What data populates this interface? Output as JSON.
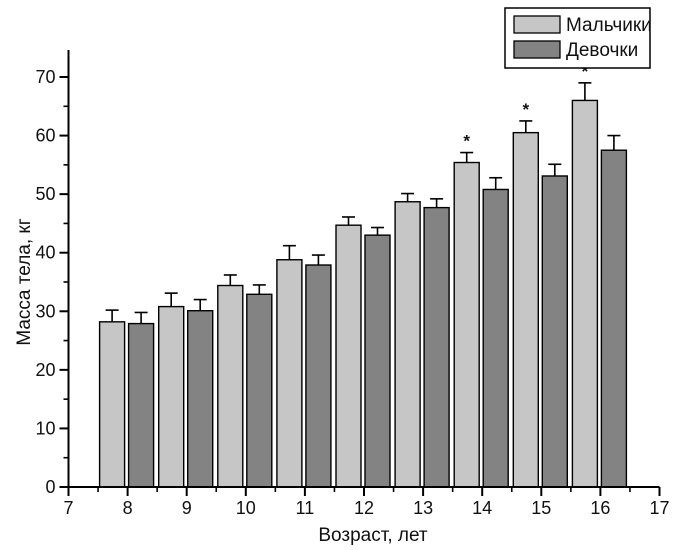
{
  "figure": {
    "background": "#ffffff",
    "axis_color": "#000000",
    "significance_marker": "*"
  },
  "legend": {
    "items": [
      {
        "key": "boys",
        "label": "Мальчики",
        "color": "#c6c6c6"
      },
      {
        "key": "girls",
        "label": "Девочки",
        "color": "#838383"
      }
    ]
  },
  "chart_data": {
    "type": "bar",
    "title": "",
    "xlabel": "Возраст, лет",
    "ylabel": "Масса тела, кг",
    "categories": [
      8,
      9,
      10,
      11,
      12,
      13,
      14,
      15,
      16
    ],
    "xlim": [
      7,
      17
    ],
    "ylim": [
      0,
      70
    ],
    "x_major_ticks": [
      7,
      8,
      9,
      10,
      11,
      12,
      13,
      14,
      15,
      16,
      17
    ],
    "x_minor_ticks": [
      7.5,
      8.5,
      9.5,
      10.5,
      11.5,
      12.5,
      13.5,
      14.5,
      15.5,
      16.5
    ],
    "y_major_ticks": [
      0,
      10,
      20,
      30,
      40,
      50,
      60,
      70
    ],
    "y_minor_ticks": [
      5,
      15,
      25,
      35,
      45,
      55,
      65
    ],
    "grid": false,
    "legend_position": "top-right",
    "series": [
      {
        "key": "boys",
        "name": "Мальчики",
        "color": "#c6c6c6",
        "values": [
          28.2,
          30.8,
          34.4,
          38.8,
          44.7,
          48.7,
          55.4,
          60.5,
          66.0
        ],
        "errors": [
          2.0,
          2.3,
          1.8,
          2.4,
          1.4,
          1.4,
          1.7,
          2.0,
          3.0
        ],
        "significant": [
          false,
          false,
          false,
          false,
          false,
          false,
          true,
          true,
          true
        ]
      },
      {
        "key": "girls",
        "name": "Девочки",
        "color": "#838383",
        "values": [
          27.9,
          30.1,
          32.9,
          37.9,
          43.0,
          47.7,
          50.8,
          53.1,
          57.5
        ],
        "errors": [
          1.9,
          1.9,
          1.6,
          1.7,
          1.3,
          1.5,
          2.0,
          2.0,
          2.5
        ],
        "significant": [
          false,
          false,
          false,
          false,
          false,
          false,
          false,
          false,
          false
        ]
      }
    ]
  }
}
